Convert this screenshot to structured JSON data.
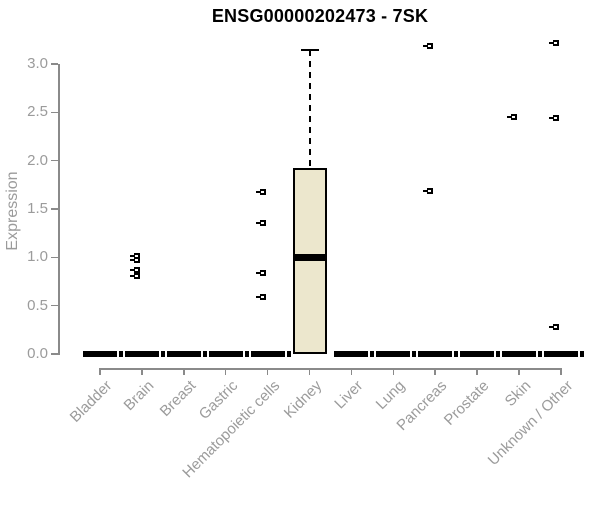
{
  "title": "ENSG00000202473 - 7SK",
  "chart_data": {
    "type": "boxplot",
    "title": "ENSG00000202473 - 7SK",
    "xlabel": "",
    "ylabel": "Expression",
    "ylim": [
      0.0,
      3.0
    ],
    "yticks": [
      "0.0",
      "0.5",
      "1.0",
      "1.5",
      "2.0",
      "2.5",
      "3.0"
    ],
    "grid": false,
    "legend": null,
    "categories": [
      "Bladder",
      "Brain",
      "Breast",
      "Gastric",
      "Hematopoietic cells",
      "Kidney",
      "Liver",
      "Lung",
      "Pancreas",
      "Prostate",
      "Skin",
      "Unknown / Other"
    ],
    "boxes": [
      {
        "category": "Bladder",
        "low": 0,
        "q1": 0,
        "median": 0,
        "q3": 0,
        "high": 0,
        "outliers": []
      },
      {
        "category": "Brain",
        "low": 0,
        "q1": 0,
        "median": 0,
        "q3": 0,
        "high": 0,
        "outliers": [
          1.01,
          0.97,
          0.87,
          0.81
        ]
      },
      {
        "category": "Breast",
        "low": 0,
        "q1": 0,
        "median": 0,
        "q3": 0,
        "high": 0,
        "outliers": []
      },
      {
        "category": "Gastric",
        "low": 0,
        "q1": 0,
        "median": 0,
        "q3": 0,
        "high": 0,
        "outliers": []
      },
      {
        "category": "Hematopoietic cells",
        "low": 0,
        "q1": 0,
        "median": 0,
        "q3": 0,
        "high": 0,
        "outliers": [
          1.68,
          1.36,
          0.84,
          0.59
        ]
      },
      {
        "category": "Kidney",
        "low": 0,
        "q1": 0,
        "median": 1.0,
        "q3": 1.92,
        "high": 3.15,
        "outliers": []
      },
      {
        "category": "Liver",
        "low": 0,
        "q1": 0,
        "median": 0,
        "q3": 0,
        "high": 0,
        "outliers": []
      },
      {
        "category": "Lung",
        "low": 0,
        "q1": 0,
        "median": 0,
        "q3": 0,
        "high": 0,
        "outliers": []
      },
      {
        "category": "Pancreas",
        "low": 0,
        "q1": 0,
        "median": 0,
        "q3": 0,
        "high": 0,
        "outliers": [
          3.19,
          1.69
        ]
      },
      {
        "category": "Prostate",
        "low": 0,
        "q1": 0,
        "median": 0,
        "q3": 0,
        "high": 0,
        "outliers": []
      },
      {
        "category": "Skin",
        "low": 0,
        "q1": 0,
        "median": 0,
        "q3": 0,
        "high": 0,
        "outliers": [
          2.45
        ]
      },
      {
        "category": "Unknown / Other",
        "low": 0,
        "q1": 0,
        "median": 0,
        "q3": 0,
        "high": 0,
        "outliers": [
          3.22,
          2.44,
          0.28
        ]
      }
    ],
    "colors": {
      "box_fill": "#ECE7CD",
      "box_border": "#000000",
      "median": "#000000",
      "outlier": "#000000",
      "axis": "#8a8a8a",
      "tick_label": "#9b9b9b",
      "title": "#000000",
      "background": "#ffffff"
    }
  }
}
